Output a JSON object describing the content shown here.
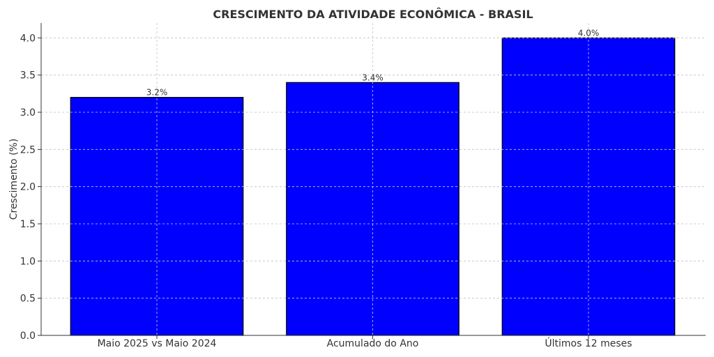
{
  "chart_data": {
    "type": "bar",
    "title": "CRESCIMENTO DA ATIVIDADE ECONÔMICA - BRASIL",
    "xlabel": "",
    "ylabel": "Crescimento (%)",
    "categories": [
      "Maio 2025 vs Maio 2024",
      "Acumulado do Ano",
      "Últimos 12 meses"
    ],
    "values": [
      3.2,
      3.4,
      4.0
    ],
    "data_labels": [
      "3.2%",
      "3.4%",
      "4.0%"
    ],
    "ylim": [
      0,
      4.2
    ],
    "yticks": [
      0.0,
      0.5,
      1.0,
      1.5,
      2.0,
      2.5,
      3.0,
      3.5,
      4.0
    ],
    "ytick_labels": [
      "0.0",
      "0.5",
      "1.0",
      "1.5",
      "2.0",
      "2.5",
      "3.0",
      "3.5",
      "4.0"
    ],
    "grid": true,
    "bar_color": "#0000ff",
    "bar_edge_color": "#000000"
  }
}
